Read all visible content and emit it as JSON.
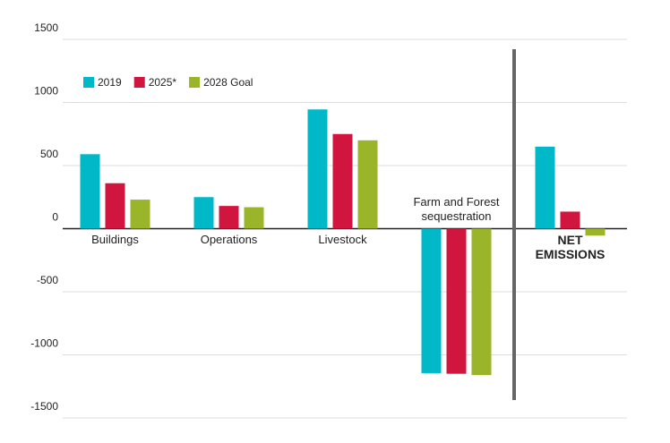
{
  "chart_data": {
    "type": "bar",
    "categories": [
      "Buildings",
      "Operations",
      "Livestock",
      "Farm and Forest sequestration",
      "NET EMISSIONS"
    ],
    "series": [
      {
        "name": "2019",
        "color": "#00b8c8",
        "values": [
          590,
          250,
          945,
          -1145,
          650
        ]
      },
      {
        "name": "2025*",
        "color": "#d0153f",
        "values": [
          360,
          180,
          750,
          -1150,
          135
        ]
      },
      {
        "name": "2028 Goal",
        "color": "#9bb52a",
        "values": [
          230,
          170,
          700,
          -1160,
          -55
        ]
      }
    ],
    "ylim": [
      -1500,
      1500
    ],
    "yticks": [
      -1500,
      -1000,
      -500,
      0,
      500,
      1000,
      1500
    ],
    "grid": true,
    "legend": "top-left"
  }
}
